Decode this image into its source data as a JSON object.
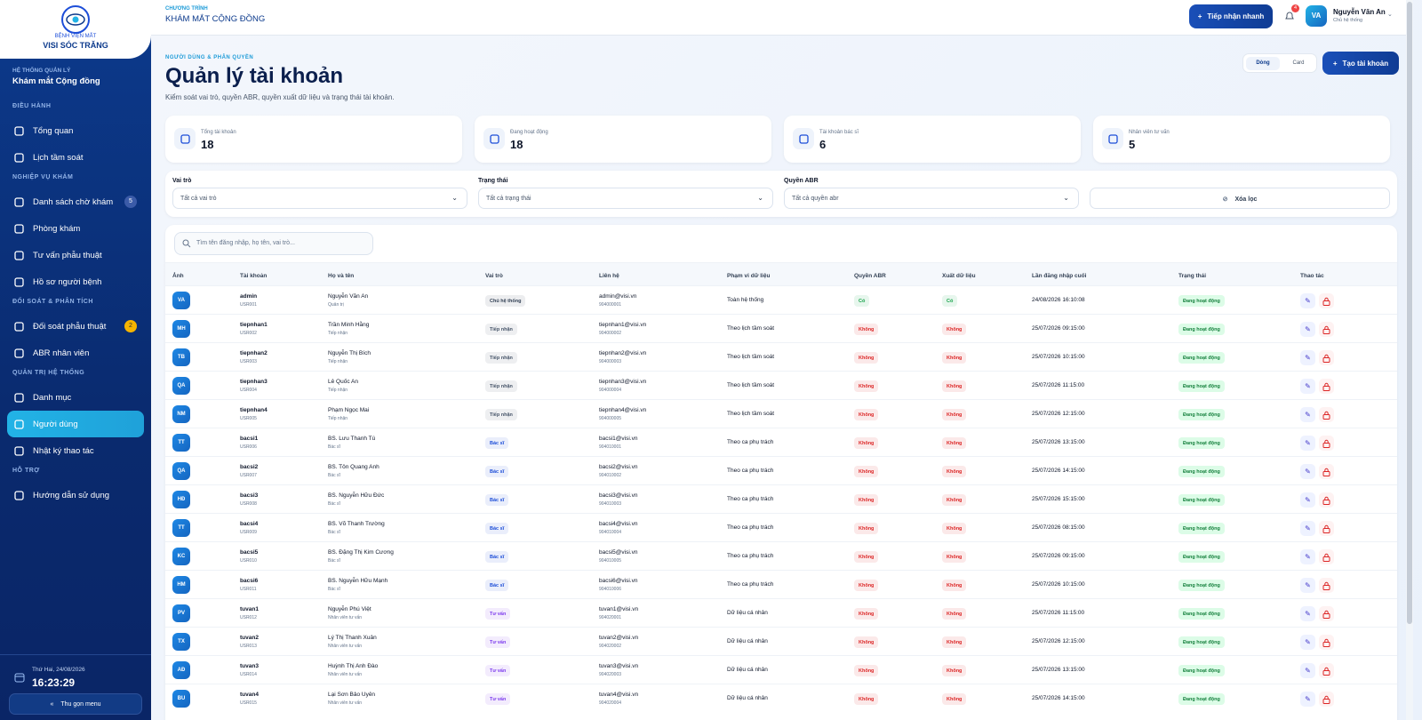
{
  "logo": {
    "line1": "BỆNH VIỆN MẮT",
    "line2": "VISI SÓC TRĂNG"
  },
  "sidebar": {
    "system_label": "HỆ THỐNG QUẢN LÝ",
    "system_name": "Khám mắt Cộng đồng",
    "sections": [
      {
        "title": "ĐIỀU HÀNH",
        "items": [
          {
            "label": "Tổng quan"
          },
          {
            "label": "Lịch tầm soát"
          }
        ]
      },
      {
        "title": "NGHIỆP VỤ KHÁM",
        "items": [
          {
            "label": "Danh sách chờ khám",
            "badge": "5"
          },
          {
            "label": "Phòng khám"
          },
          {
            "label": "Tư vấn phẫu thuật"
          },
          {
            "label": "Hồ sơ người bệnh"
          }
        ]
      },
      {
        "title": "ĐỐI SOÁT & PHÂN TÍCH",
        "items": [
          {
            "label": "Đối soát phẫu thuật",
            "badge": "2"
          },
          {
            "label": "ABR nhân viên"
          }
        ]
      },
      {
        "title": "QUẢN TRỊ HỆ THỐNG",
        "items": [
          {
            "label": "Danh mục"
          },
          {
            "label": "Người dùng",
            "active": true
          },
          {
            "label": "Nhật ký thao tác"
          }
        ]
      },
      {
        "title": "HỖ TRỢ",
        "items": [
          {
            "label": "Hướng dẫn sử dụng"
          }
        ]
      }
    ],
    "date": "Thứ Hai, 24/08/2026",
    "time": "16:23:29",
    "collapse": "Thu gọn menu"
  },
  "header": {
    "program_label": "CHƯƠNG TRÌNH",
    "program_name": "KHÁM MẮT CỘNG ĐỒNG",
    "quick_button": "Tiếp nhận nhanh",
    "notifications": "4",
    "user_initials": "VA",
    "user_name": "Nguyễn Văn An",
    "user_role": "Chủ hệ thống"
  },
  "page": {
    "eyebrow": "NGƯỜI DÙNG & PHÂN QUYỀN",
    "title": "Quản lý tài khoản",
    "subtitle": "Kiểm soát vai trò, quyền ABR, quyền xuất dữ liệu và trạng thái tài khoản.",
    "view_row": "Dòng",
    "view_card": "Card",
    "create_button": "Tạo tài khoản"
  },
  "stats": [
    {
      "label": "Tổng tài khoản",
      "value": "18"
    },
    {
      "label": "Đang hoạt động",
      "value": "18"
    },
    {
      "label": "Tài khoản bác sĩ",
      "value": "6"
    },
    {
      "label": "Nhân viên tư vấn",
      "value": "5"
    }
  ],
  "filters": [
    {
      "label": "Vai trò",
      "value": "Tất cả vai trò"
    },
    {
      "label": "Trạng thái",
      "value": "Tất cả trạng thái"
    },
    {
      "label": "Quyền ABR",
      "value": "Tất cả quyền abr"
    }
  ],
  "clear_filter": "Xóa lọc",
  "search_placeholder": "Tìm tên đăng nhập, họ tên, vai trò...",
  "table": {
    "columns": [
      "Ảnh",
      "Tài khoản",
      "Họ và tên",
      "Vai trò",
      "Liên hệ",
      "Phạm vi dữ liệu",
      "Quyền ABR",
      "Xuất dữ liệu",
      "Lần đăng nhập cuối",
      "Trạng thái",
      "Thao tác"
    ],
    "rows": [
      {
        "initials": "VA",
        "username": "admin",
        "code": "USR001",
        "name": "Nguyễn Văn An",
        "title": "Quản trị",
        "role": "Chủ hệ thống",
        "role_color": "#334155",
        "email": "admin@visi.vn",
        "phone": "904000001",
        "scope": "Toàn hệ thống",
        "abr": "Có",
        "abr_color": "#16a34a",
        "export": "Có",
        "export_color": "#16a34a",
        "last_login": "24/08/2026 16:10:08",
        "status": "Đang hoạt động"
      },
      {
        "initials": "MH",
        "username": "tiepnhan1",
        "code": "USR002",
        "name": "Trần Minh Hằng",
        "title": "Tiếp nhận",
        "role": "Tiếp nhận",
        "role_color": "#475569",
        "email": "tiepnhan1@visi.vn",
        "phone": "904000002",
        "scope": "Theo lịch tầm soát",
        "abr": "Không",
        "abr_color": "#dc2626",
        "export": "Không",
        "export_color": "#dc2626",
        "last_login": "25/07/2026 09:15:00",
        "status": "Đang hoạt động"
      },
      {
        "initials": "TB",
        "username": "tiepnhan2",
        "code": "USR003",
        "name": "Nguyễn Thị Bích",
        "title": "Tiếp nhận",
        "role": "Tiếp nhận",
        "role_color": "#475569",
        "email": "tiepnhan2@visi.vn",
        "phone": "904000003",
        "scope": "Theo lịch tầm soát",
        "abr": "Không",
        "abr_color": "#dc2626",
        "export": "Không",
        "export_color": "#dc2626",
        "last_login": "25/07/2026 10:15:00",
        "status": "Đang hoạt động"
      },
      {
        "initials": "QA",
        "username": "tiepnhan3",
        "code": "USR004",
        "name": "Lê Quốc An",
        "title": "Tiếp nhận",
        "role": "Tiếp nhận",
        "role_color": "#475569",
        "email": "tiepnhan3@visi.vn",
        "phone": "904000004",
        "scope": "Theo lịch tầm soát",
        "abr": "Không",
        "abr_color": "#dc2626",
        "export": "Không",
        "export_color": "#dc2626",
        "last_login": "25/07/2026 11:15:00",
        "status": "Đang hoạt động"
      },
      {
        "initials": "NM",
        "username": "tiepnhan4",
        "code": "USR005",
        "name": "Phạm Ngọc Mai",
        "title": "Tiếp nhận",
        "role": "Tiếp nhận",
        "role_color": "#475569",
        "email": "tiepnhan4@visi.vn",
        "phone": "904000005",
        "scope": "Theo lịch tầm soát",
        "abr": "Không",
        "abr_color": "#dc2626",
        "export": "Không",
        "export_color": "#dc2626",
        "last_login": "25/07/2026 12:15:00",
        "status": "Đang hoạt động"
      },
      {
        "initials": "TT",
        "username": "bacsi1",
        "code": "USR006",
        "name": "BS. Lưu Thanh Tú",
        "title": "Bác sĩ",
        "role": "Bác sĩ",
        "role_color": "#1d4ed8",
        "email": "bacsi1@visi.vn",
        "phone": "904010001",
        "scope": "Theo ca phụ trách",
        "abr": "Không",
        "abr_color": "#dc2626",
        "export": "Không",
        "export_color": "#dc2626",
        "last_login": "25/07/2026 13:15:00",
        "status": "Đang hoạt động"
      },
      {
        "initials": "QA",
        "username": "bacsi2",
        "code": "USR007",
        "name": "BS. Tôn Quang Anh",
        "title": "Bác sĩ",
        "role": "Bác sĩ",
        "role_color": "#1d4ed8",
        "email": "bacsi2@visi.vn",
        "phone": "904010002",
        "scope": "Theo ca phụ trách",
        "abr": "Không",
        "abr_color": "#dc2626",
        "export": "Không",
        "export_color": "#dc2626",
        "last_login": "25/07/2026 14:15:00",
        "status": "Đang hoạt động"
      },
      {
        "initials": "HĐ",
        "username": "bacsi3",
        "code": "USR008",
        "name": "BS. Nguyễn Hữu Đức",
        "title": "Bác sĩ",
        "role": "Bác sĩ",
        "role_color": "#1d4ed8",
        "email": "bacsi3@visi.vn",
        "phone": "904010003",
        "scope": "Theo ca phụ trách",
        "abr": "Không",
        "abr_color": "#dc2626",
        "export": "Không",
        "export_color": "#dc2626",
        "last_login": "25/07/2026 15:15:00",
        "status": "Đang hoạt động"
      },
      {
        "initials": "TT",
        "username": "bacsi4",
        "code": "USR009",
        "name": "BS. Võ Thanh Trường",
        "title": "Bác sĩ",
        "role": "Bác sĩ",
        "role_color": "#1d4ed8",
        "email": "bacsi4@visi.vn",
        "phone": "904010004",
        "scope": "Theo ca phụ trách",
        "abr": "Không",
        "abr_color": "#dc2626",
        "export": "Không",
        "export_color": "#dc2626",
        "last_login": "25/07/2026 08:15:00",
        "status": "Đang hoạt động"
      },
      {
        "initials": "KC",
        "username": "bacsi5",
        "code": "USR010",
        "name": "BS. Đặng Thị Kim Cương",
        "title": "Bác sĩ",
        "role": "Bác sĩ",
        "role_color": "#1d4ed8",
        "email": "bacsi5@visi.vn",
        "phone": "904010005",
        "scope": "Theo ca phụ trách",
        "abr": "Không",
        "abr_color": "#dc2626",
        "export": "Không",
        "export_color": "#dc2626",
        "last_login": "25/07/2026 09:15:00",
        "status": "Đang hoạt động"
      },
      {
        "initials": "HM",
        "username": "bacsi6",
        "code": "USR011",
        "name": "BS. Nguyễn Hữu Mạnh",
        "title": "Bác sĩ",
        "role": "Bác sĩ",
        "role_color": "#1d4ed8",
        "email": "bacsi6@visi.vn",
        "phone": "904010006",
        "scope": "Theo ca phụ trách",
        "abr": "Không",
        "abr_color": "#dc2626",
        "export": "Không",
        "export_color": "#dc2626",
        "last_login": "25/07/2026 10:15:00",
        "status": "Đang hoạt động"
      },
      {
        "initials": "PV",
        "username": "tuvan1",
        "code": "USR012",
        "name": "Nguyễn Phú Việt",
        "title": "Nhân viên tư vấn",
        "role": "Tư vấn",
        "role_color": "#7c3aed",
        "email": "tuvan1@visi.vn",
        "phone": "904020001",
        "scope": "Dữ liệu cá nhân",
        "abr": "Không",
        "abr_color": "#dc2626",
        "export": "Không",
        "export_color": "#dc2626",
        "last_login": "25/07/2026 11:15:00",
        "status": "Đang hoạt động"
      },
      {
        "initials": "TX",
        "username": "tuvan2",
        "code": "USR013",
        "name": "Lý Thị Thanh Xuân",
        "title": "Nhân viên tư vấn",
        "role": "Tư vấn",
        "role_color": "#7c3aed",
        "email": "tuvan2@visi.vn",
        "phone": "904020002",
        "scope": "Dữ liệu cá nhân",
        "abr": "Không",
        "abr_color": "#dc2626",
        "export": "Không",
        "export_color": "#dc2626",
        "last_login": "25/07/2026 12:15:00",
        "status": "Đang hoạt động"
      },
      {
        "initials": "AĐ",
        "username": "tuvan3",
        "code": "USR014",
        "name": "Huỳnh Thị Anh Đào",
        "title": "Nhân viên tư vấn",
        "role": "Tư vấn",
        "role_color": "#7c3aed",
        "email": "tuvan3@visi.vn",
        "phone": "904020003",
        "scope": "Dữ liệu cá nhân",
        "abr": "Không",
        "abr_color": "#dc2626",
        "export": "Không",
        "export_color": "#dc2626",
        "last_login": "25/07/2026 13:15:00",
        "status": "Đang hoạt động"
      },
      {
        "initials": "BU",
        "username": "tuvan4",
        "code": "USR015",
        "name": "Lại Sơn Bảo Uyên",
        "title": "Nhân viên tư vấn",
        "role": "Tư vấn",
        "role_color": "#7c3aed",
        "email": "tuvan4@visi.vn",
        "phone": "904020004",
        "scope": "Dữ liệu cá nhân",
        "abr": "Không",
        "abr_color": "#dc2626",
        "export": "Không",
        "export_color": "#dc2626",
        "last_login": "25/07/2026 14:15:00",
        "status": "Đang hoạt động"
      }
    ]
  }
}
